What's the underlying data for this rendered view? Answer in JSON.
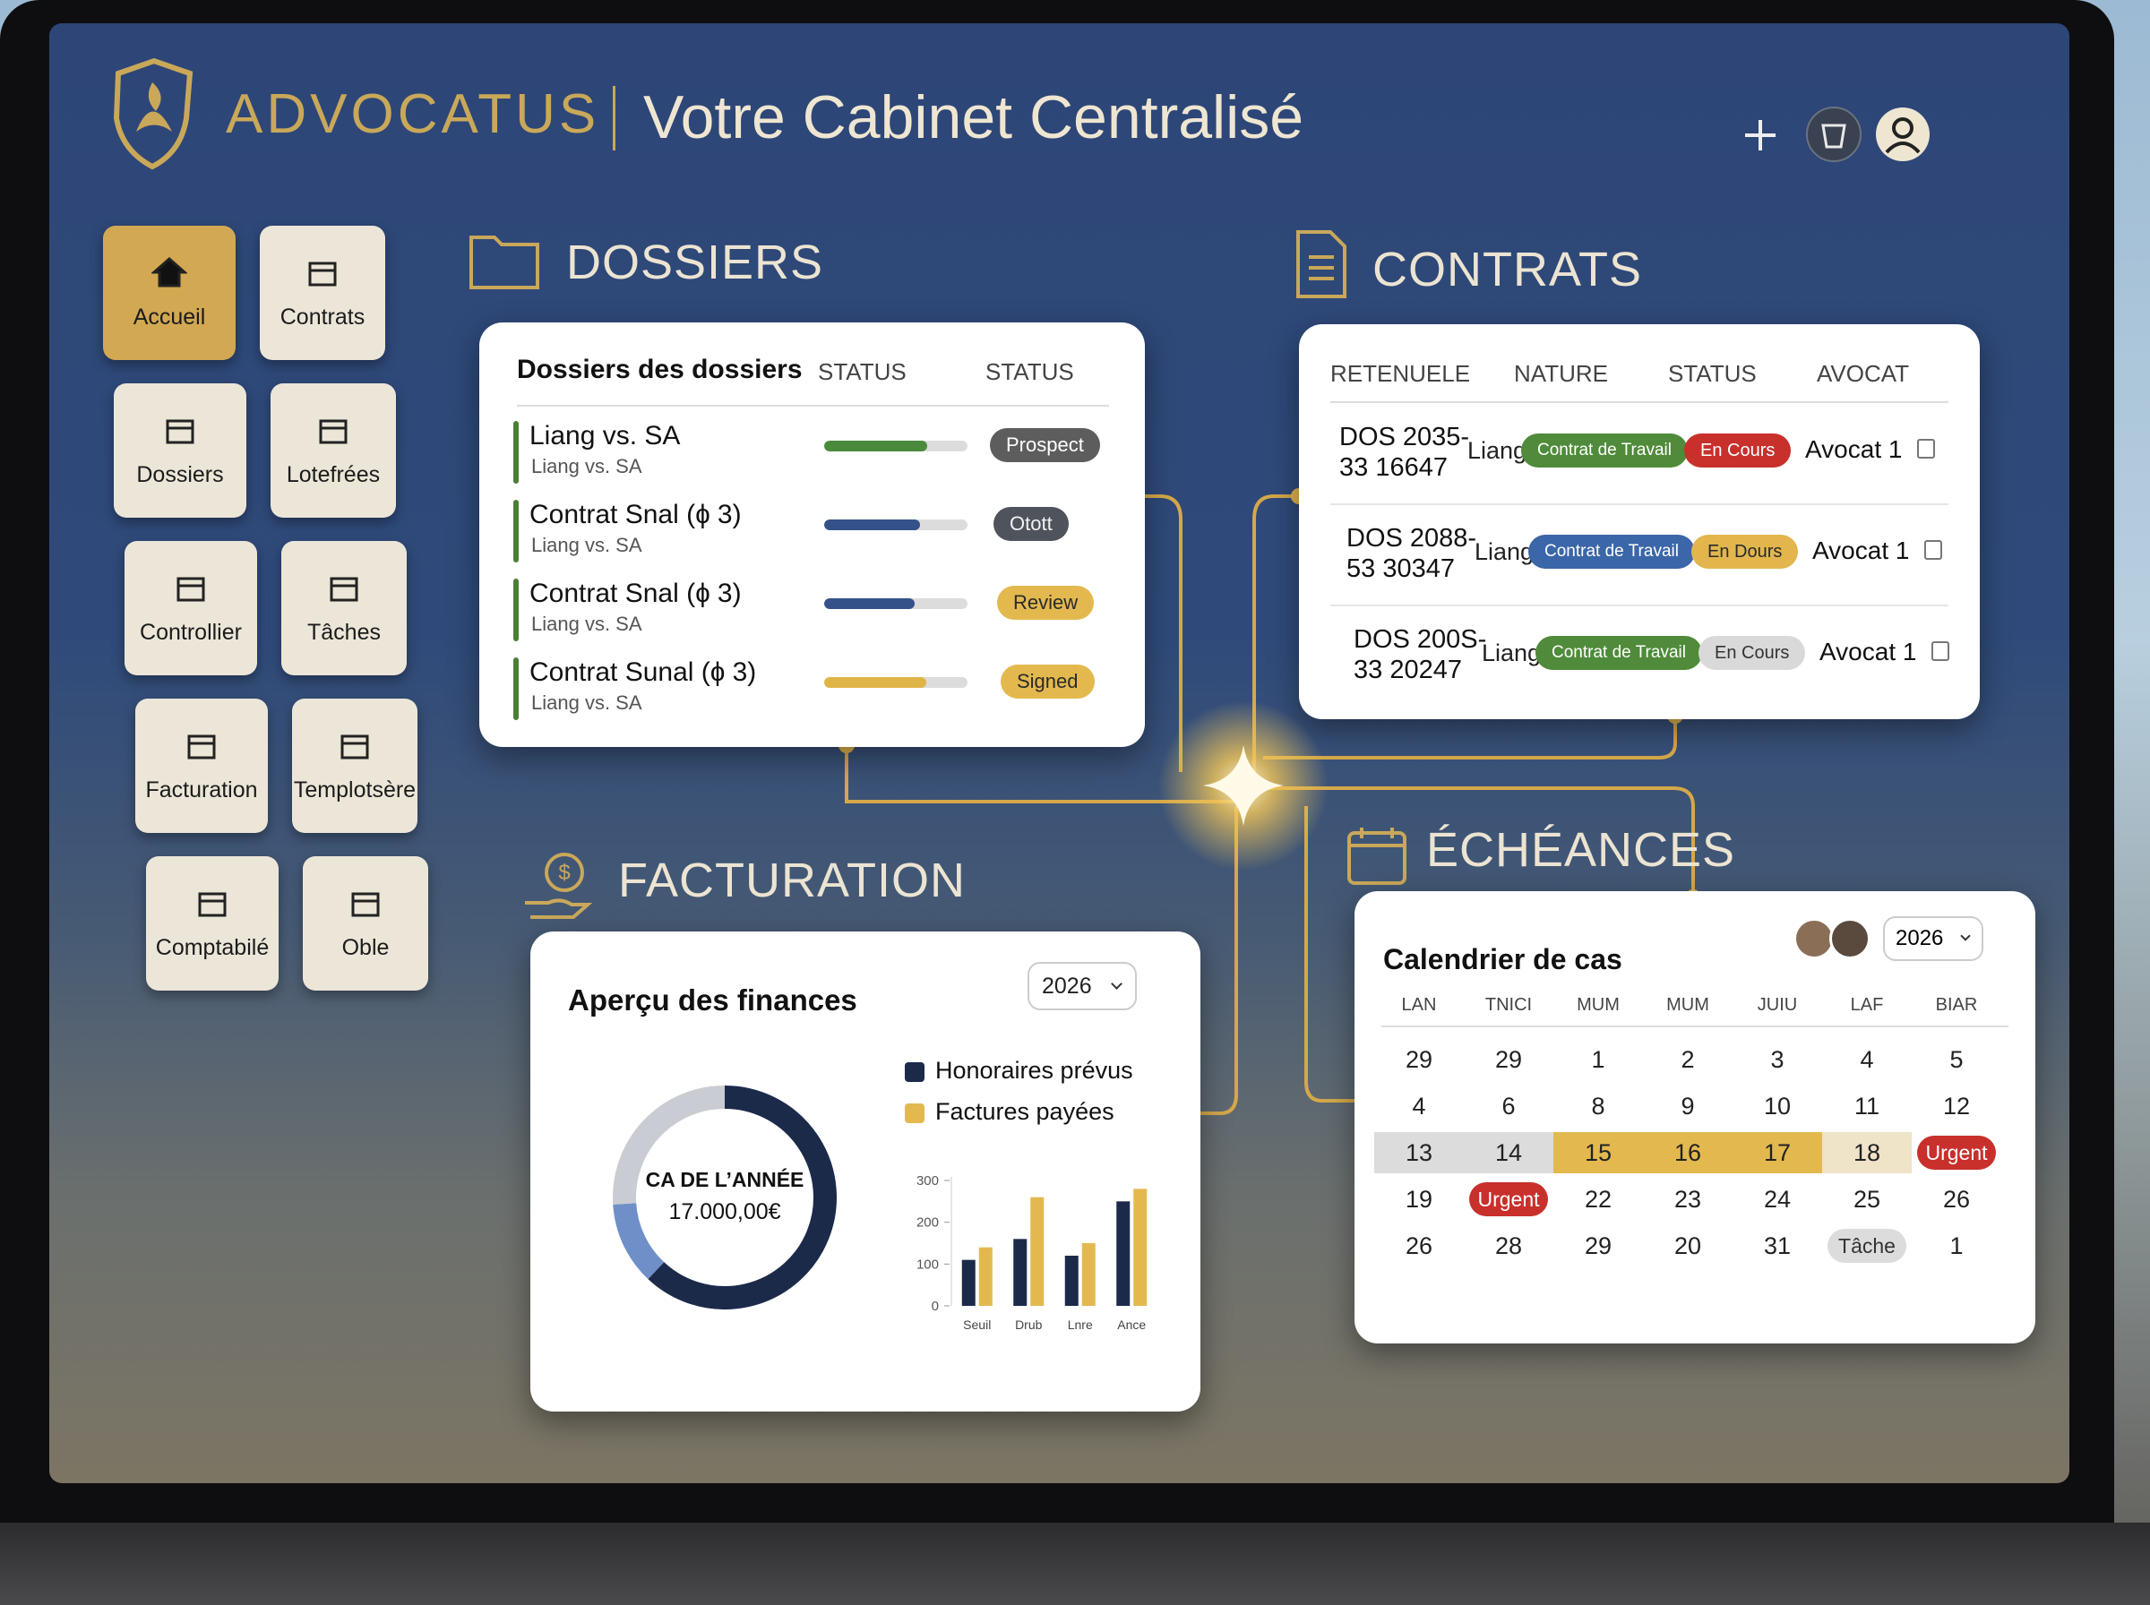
{
  "header": {
    "brand": "ADVOCATUS",
    "title": "Votre Cabinet Centralisé"
  },
  "nav": [
    {
      "label": "Accueil",
      "active": true
    },
    {
      "label": "Contrats"
    },
    {
      "label": "Dossiers"
    },
    {
      "label": "Lotefrées"
    },
    {
      "label": "Controllier"
    },
    {
      "label": "Tâches"
    },
    {
      "label": "Facturation"
    },
    {
      "label": "Templotsère"
    },
    {
      "label": "Comptabilé"
    },
    {
      "label": "Oble"
    }
  ],
  "dossiers": {
    "title": "DOSSIERS",
    "columns": [
      "Dossiers des dossiers",
      "STATUS",
      "STATUS"
    ],
    "rows": [
      {
        "name": "Liang vs. SA",
        "client": "Liang vs. SA",
        "progress": 72,
        "color": "#4b8a3c",
        "status": "Prospect",
        "status_color": "#5d5d5d",
        "status_text_color": "#ffffff"
      },
      {
        "name": "Contrat Snal (ɸ 3)",
        "client": "Liang vs. SA",
        "progress": 67,
        "color": "#34518a",
        "status": "Otott",
        "status_color": "#4e535c",
        "status_text_color": "#f2f2f2"
      },
      {
        "name": "Contrat Snal (ɸ 3)",
        "client": "Liang vs. SA",
        "progress": 63,
        "color": "#34518a",
        "status": "Review",
        "status_color": "#e3b94f",
        "status_text_color": "#2a2a2a"
      },
      {
        "name": "Contrat Sunal (ɸ 3)",
        "client": "Liang vs. SA",
        "progress": 71,
        "color": "#e0b447",
        "status": "Signed",
        "status_color": "#e3b94f",
        "status_text_color": "#2a2a2a"
      }
    ]
  },
  "contrats": {
    "title": "CONTRATS",
    "columns": [
      "RETENUELE",
      "NATURE",
      "STATUS",
      "AVOCAT"
    ],
    "rows": [
      {
        "ref": [
          "DOS 2035-",
          "33 16647"
        ],
        "client": "Liang",
        "nature": "Contrat de Travail",
        "nature_color": "#4f8b3a",
        "status": "En Cours",
        "status_color": "#c8302c",
        "status_text_color": "#ffffff",
        "avocat": "Avocat 1"
      },
      {
        "ref": [
          "DOS 2088-",
          "53 30347"
        ],
        "client": "Liang",
        "nature": "Contrat de Travail",
        "nature_color": "#3b66a8",
        "status": "En Dours",
        "status_color": "#e2b64d",
        "status_text_color": "#2a2a2a",
        "avocat": "Avocat 1"
      },
      {
        "ref": [
          "DOS 200S-",
          "33 20247"
        ],
        "client": "Liang",
        "nature": "Contrat de Travail",
        "nature_color": "#4f8b3a",
        "status": "En Cours",
        "status_color": "#d9d9d9",
        "status_text_color": "#333333",
        "avocat": "Avocat 1"
      }
    ]
  },
  "facturation": {
    "title": "FACTURATION",
    "card_title": "Aperçu des finances",
    "year": "2026"
  },
  "chart_data": [
    {
      "type": "pie",
      "values": [
        62,
        12,
        26
      ],
      "colors": [
        "#1c2a4a",
        "#6f8fc9",
        "#c9ccd2"
      ],
      "center_label": "CA DE L’ANNÉE",
      "center_value": "17.000,00€"
    },
    {
      "type": "bar",
      "categories": [
        "Seuil",
        "Drub",
        "Lnre",
        "Ance"
      ],
      "series": [
        {
          "name": "Honoraires prévus",
          "color": "#1c2a4a",
          "values": [
            110,
            160,
            120,
            250
          ]
        },
        {
          "name": "Factures payées",
          "color": "#e3b94f",
          "values": [
            140,
            260,
            150,
            280
          ]
        }
      ],
      "ylim": [
        0,
        300
      ],
      "yticks": [
        0,
        100,
        200,
        300
      ]
    }
  ],
  "echeances": {
    "title": "ÉCHÉANCES",
    "card_title": "Calendrier de cas",
    "year": "2026",
    "weekdays": [
      "LAN",
      "TNICI",
      "MUM",
      "MUM",
      "JUIU",
      "LAF",
      "BIAR"
    ],
    "weeks": [
      [
        "29",
        "29",
        "1",
        "2",
        "3",
        "4",
        "5"
      ],
      [
        "4",
        "6",
        "8",
        "9",
        "10",
        "11",
        "12"
      ],
      [
        {
          "day": "13",
          "fill": "#dcdcdc"
        },
        {
          "day": "14",
          "fill": "#dcdcdc"
        },
        {
          "day": "15",
          "fill": "#e3b94f"
        },
        {
          "day": "16",
          "fill": "#e3b94f"
        },
        {
          "day": "17",
          "fill": "#e3b94f"
        },
        {
          "day": "18",
          "fill": "#efe3c8"
        },
        {
          "tag": "Urgent",
          "color": "#c8302c",
          "text_color": "#ffffff"
        }
      ],
      [
        "19",
        {
          "tag": "Urgent",
          "color": "#c8302c",
          "text_color": "#ffffff"
        },
        "22",
        "23",
        "24",
        "25",
        "26"
      ],
      [
        "26",
        "28",
        "29",
        "20",
        "31",
        {
          "tag": "Tâche",
          "color": "#dcdcdc",
          "text_color": "#333333"
        },
        "1"
      ]
    ]
  }
}
